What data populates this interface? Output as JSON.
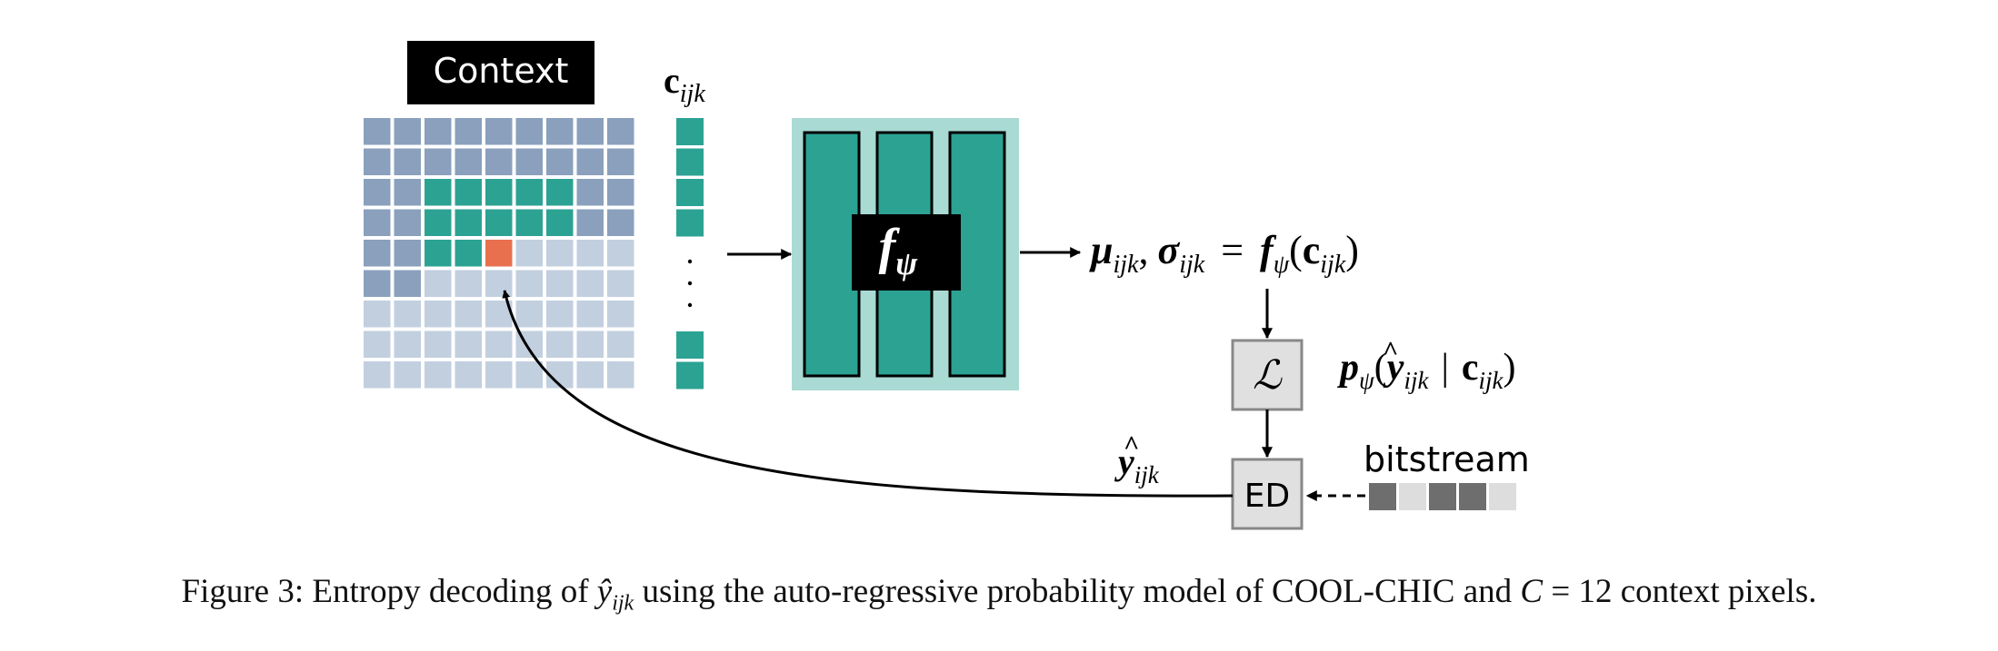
{
  "colors": {
    "past": "#8aa0bd",
    "future": "#c2cfdf",
    "context": "#2ca293",
    "current": "#e8704f",
    "network_bg": "#a9dad4",
    "black": "#000000",
    "box_fill": "#e0e0e0",
    "box_stroke": "#888888",
    "bit_dark": "#6e6e6e",
    "bit_light": "#dddddd"
  },
  "context_label": "Context",
  "context_grid": {
    "rows": [
      [
        "past",
        "past",
        "past",
        "past",
        "past",
        "past",
        "past",
        "past",
        "past"
      ],
      [
        "past",
        "past",
        "past",
        "past",
        "past",
        "past",
        "past",
        "past",
        "past"
      ],
      [
        "past",
        "past",
        "context",
        "context",
        "context",
        "context",
        "context",
        "past",
        "past"
      ],
      [
        "past",
        "past",
        "context",
        "context",
        "context",
        "context",
        "context",
        "past",
        "past"
      ],
      [
        "past",
        "past",
        "context",
        "context",
        "current",
        "future",
        "future",
        "future",
        "future"
      ],
      [
        "past",
        "past",
        "future",
        "future",
        "future",
        "future",
        "future",
        "future",
        "future"
      ],
      [
        "future",
        "future",
        "future",
        "future",
        "future",
        "future",
        "future",
        "future",
        "future"
      ],
      [
        "future",
        "future",
        "future",
        "future",
        "future",
        "future",
        "future",
        "future",
        "future"
      ],
      [
        "future",
        "future",
        "future",
        "future",
        "future",
        "future",
        "future",
        "future",
        "future"
      ]
    ]
  },
  "context_vector": {
    "label_main": "c",
    "label_sub": "ijk",
    "cells_top": 4,
    "cells_bottom": 2,
    "dots": "·\n·\n·"
  },
  "network": {
    "label_main": "f",
    "label_sub": "ψ",
    "columns": 3
  },
  "output_equation": {
    "mu": "μ",
    "sigma": "σ",
    "sub": "ijk",
    "sep": ",",
    "eq": "=",
    "f": "f",
    "psi": "ψ",
    "c": "c",
    "open": "(",
    "close": ")"
  },
  "likelihood_box": {
    "label": "ℒ"
  },
  "probability": {
    "p": "p",
    "psi": "ψ",
    "y": "y",
    "hat": "^",
    "sub": "ijk",
    "bar": "|",
    "c": "c",
    "open": "(",
    "close": ")"
  },
  "decoder_box": {
    "label": "ED"
  },
  "yhat_label": {
    "y": "y",
    "hat": "^",
    "sub": "ijk"
  },
  "bitstream": {
    "label": "bitstream",
    "bits": [
      "dark",
      "light",
      "dark",
      "dark",
      "light"
    ]
  },
  "caption": {
    "prefix": "Figure 3: Entropy decoding of",
    "var": "ŷ",
    "var_sub": "ijk",
    "middle": "using the auto-regressive probability model of COOL-CHIC and",
    "C": "C",
    "rest": "= 12 context pixels."
  }
}
